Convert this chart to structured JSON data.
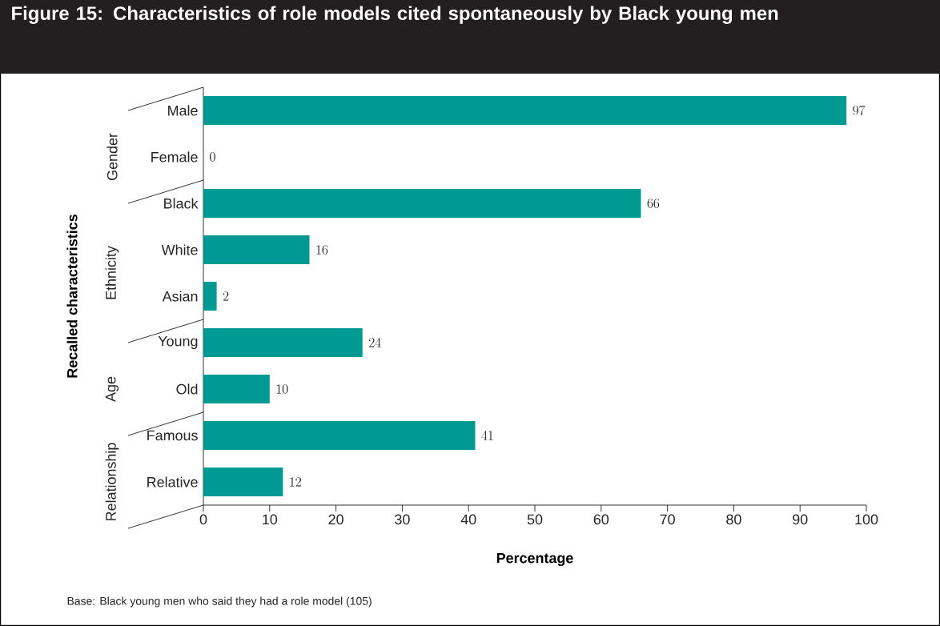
{
  "chart_data": {
    "type": "bar",
    "orientation": "horizontal",
    "title": "Figure 15: Characteristics of role models cited spontaneously by Black young men",
    "xlabel": "Percentage",
    "ylabel": "Recalled characteristics",
    "categories": [
      "Male",
      "Female",
      "Black",
      "White",
      "Asian",
      "Young",
      "Old",
      "Famous",
      "Relative"
    ],
    "values": [
      97,
      0,
      66,
      16,
      2,
      24,
      10,
      41,
      12
    ],
    "color": "#009a93",
    "xlim": [
      0,
      100
    ],
    "xticks": [
      0,
      10,
      20,
      30,
      40,
      50,
      60,
      70,
      80,
      90,
      100
    ],
    "data_labels": true,
    "annotations": [
      "Gender",
      "Ethnicity",
      "Age",
      "Relationship",
      "Base:  Black young men who said they had a role model (105)"
    ]
  }
}
